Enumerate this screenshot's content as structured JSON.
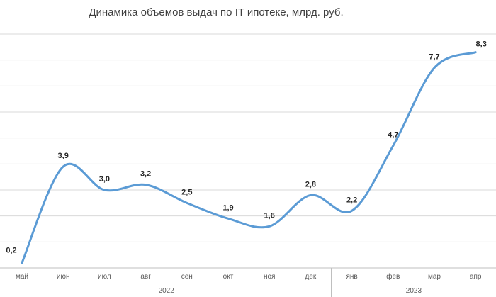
{
  "chart_data": {
    "type": "line",
    "title": "Динамика объемов выдач по IT ипотеке, млрд. руб.",
    "xlabel": "",
    "ylabel": "",
    "categories": [
      "май",
      "июн",
      "июл",
      "авг",
      "сен",
      "окт",
      "ноя",
      "дек",
      "янв",
      "фев",
      "мар",
      "апр"
    ],
    "year_groups": [
      {
        "label": "2022",
        "from": 0,
        "to": 7
      },
      {
        "label": "2023",
        "from": 8,
        "to": 11
      }
    ],
    "series": [
      {
        "values": [
          0.2,
          3.9,
          3.0,
          3.2,
          2.5,
          1.9,
          1.6,
          2.8,
          2.2,
          4.7,
          7.7,
          8.3
        ],
        "labels": [
          "0,2",
          "3,9",
          "3,0",
          "3,2",
          "2,5",
          "1,9",
          "1,6",
          "2,8",
          "2,2",
          "4,7",
          "7,7",
          "8,3"
        ],
        "color": "#5b9bd5",
        "smooth": true
      }
    ],
    "ylim": [
      0,
      9
    ],
    "y_ticks_shown": false,
    "grid": true,
    "legend": "none"
  }
}
